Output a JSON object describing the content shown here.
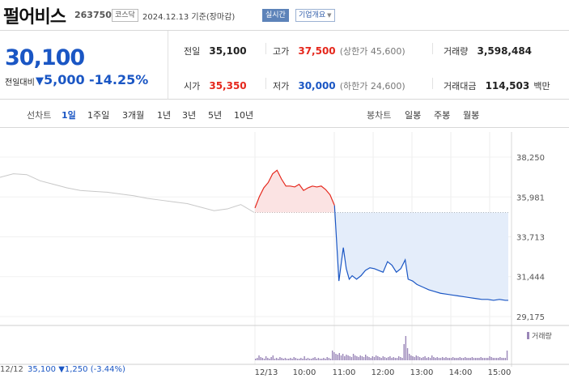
{
  "header": {
    "name": "펄어비스",
    "code": "263750",
    "market": "코스닥",
    "date_text": "2024.12.13 기준(장마감)",
    "live_badge": "실시간",
    "info_menu": "기업개요"
  },
  "price": {
    "current": "30,100",
    "vs_label": "전일대비",
    "change": "5,000",
    "change_pct": "-14.25%"
  },
  "stats": {
    "prev_close": {
      "label": "전일",
      "value": "35,100"
    },
    "high": {
      "label": "고가",
      "value": "37,500",
      "note": "(상한가 45,600)"
    },
    "volume": {
      "label": "거래량",
      "value": "3,598,484"
    },
    "open": {
      "label": "시가",
      "value": "35,350"
    },
    "low": {
      "label": "저가",
      "value": "30,000",
      "note": "(하한가 24,600)"
    },
    "amount": {
      "label": "거래대금",
      "value": "114,503",
      "unit": "백만"
    }
  },
  "tabs": {
    "line_label": "선차트",
    "line": [
      "1일",
      "1주일",
      "3개월",
      "1년",
      "3년",
      "5년",
      "10년"
    ],
    "selected": "1일",
    "candle_label": "봉차트",
    "candle": [
      "일봉",
      "주봉",
      "월봉"
    ]
  },
  "footer": {
    "date": "12/12",
    "price": "35,100",
    "change": "▼1,250",
    "pct": "(-3.44%)"
  },
  "colors": {
    "up": "#e5271c",
    "down": "#1a56c4",
    "prev_line": "#c8c8c8",
    "vol": "#9a86b8"
  },
  "chart_data": {
    "type": "line",
    "yticks": [
      "38,250",
      "35,981",
      "33,713",
      "31,444",
      "29,175"
    ],
    "ylim": [
      29175,
      38250
    ],
    "baseline": 35100,
    "xlabels": [
      "12/13",
      "10:00",
      "11:00",
      "12:00",
      "13:00",
      "14:00",
      "15:00"
    ],
    "volume_label": "거래량",
    "prev_day": [
      [
        0,
        37100
      ],
      [
        6,
        37300
      ],
      [
        12,
        37250
      ],
      [
        18,
        36900
      ],
      [
        24,
        36700
      ],
      [
        30,
        36500
      ],
      [
        36,
        36350
      ],
      [
        42,
        36300
      ],
      [
        48,
        36250
      ],
      [
        54,
        36150
      ],
      [
        60,
        36050
      ],
      [
        66,
        35900
      ],
      [
        72,
        35800
      ],
      [
        78,
        35700
      ],
      [
        84,
        35600
      ],
      [
        90,
        35400
      ],
      [
        96,
        35200
      ],
      [
        102,
        35300
      ],
      [
        108,
        35550
      ],
      [
        114,
        35100
      ]
    ],
    "today": [
      [
        0,
        35350
      ],
      [
        3,
        36000
      ],
      [
        6,
        36500
      ],
      [
        9,
        36800
      ],
      [
        12,
        37300
      ],
      [
        15,
        37500
      ],
      [
        18,
        37000
      ],
      [
        21,
        36600
      ],
      [
        24,
        36600
      ],
      [
        27,
        36550
      ],
      [
        30,
        36700
      ],
      [
        33,
        36350
      ],
      [
        36,
        36500
      ],
      [
        39,
        36600
      ],
      [
        42,
        36550
      ],
      [
        45,
        36600
      ],
      [
        48,
        36400
      ],
      [
        51,
        36100
      ],
      [
        54,
        35500
      ],
      [
        57,
        31200
      ],
      [
        60,
        33100
      ],
      [
        62,
        31900
      ],
      [
        64,
        31300
      ],
      [
        66,
        31500
      ],
      [
        69,
        31300
      ],
      [
        72,
        31500
      ],
      [
        75,
        31800
      ],
      [
        78,
        31950
      ],
      [
        81,
        31900
      ],
      [
        84,
        31800
      ],
      [
        87,
        31700
      ],
      [
        90,
        32300
      ],
      [
        93,
        32100
      ],
      [
        96,
        31700
      ],
      [
        99,
        31900
      ],
      [
        102,
        32400
      ],
      [
        104,
        31300
      ],
      [
        107,
        31200
      ],
      [
        110,
        31000
      ],
      [
        114,
        30850
      ],
      [
        118,
        30700
      ],
      [
        122,
        30600
      ],
      [
        126,
        30500
      ],
      [
        130,
        30450
      ],
      [
        134,
        30400
      ],
      [
        138,
        30350
      ],
      [
        142,
        30300
      ],
      [
        146,
        30250
      ],
      [
        150,
        30200
      ],
      [
        154,
        30150
      ],
      [
        158,
        30150
      ],
      [
        162,
        30100
      ],
      [
        166,
        30150
      ],
      [
        170,
        30100
      ],
      [
        172,
        30100
      ]
    ]
  }
}
